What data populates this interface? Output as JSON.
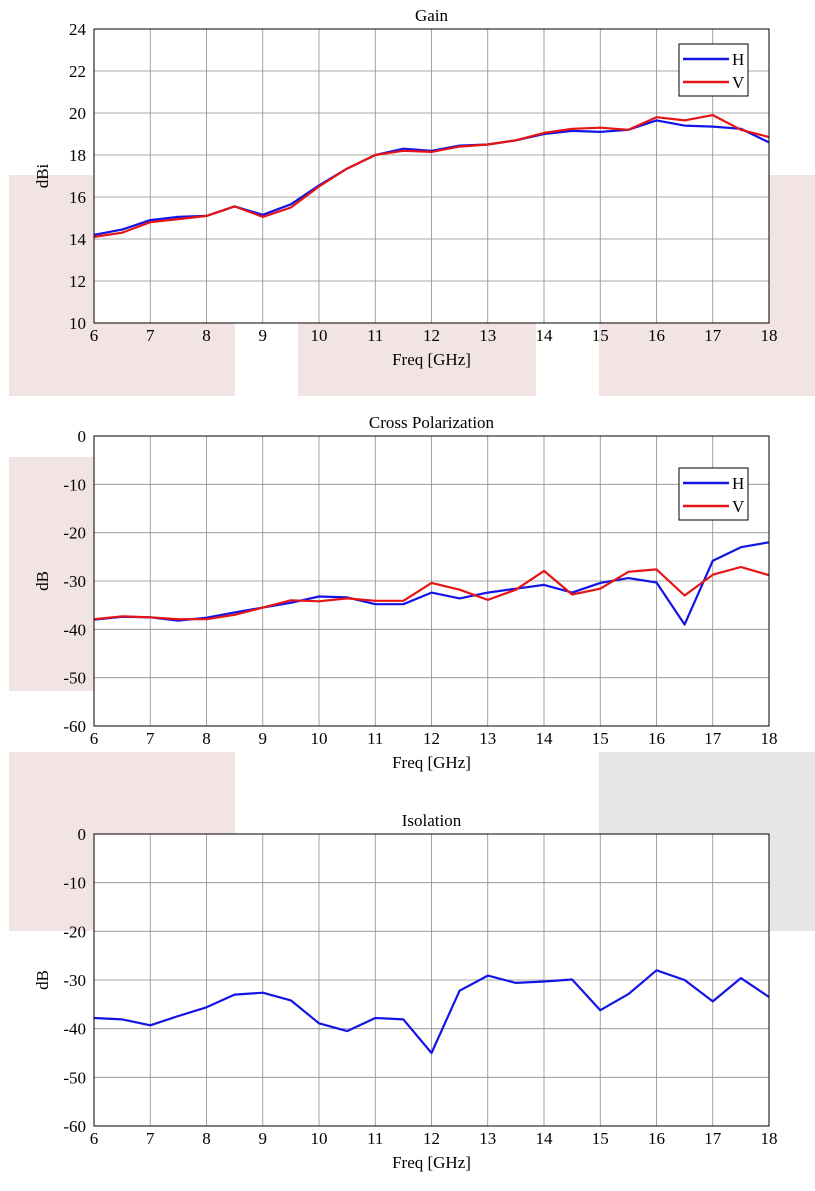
{
  "colors": {
    "H": "#1414e6",
    "V": "#e61414",
    "overlay_pink": "#f3e4e4",
    "overlay_gray": "#e6e6e6"
  },
  "chart_data": [
    {
      "type": "line",
      "title": "Gain",
      "xlabel": "Freq [GHz]",
      "ylabel": "dBi",
      "xlim": [
        6,
        18
      ],
      "ylim": [
        10,
        24
      ],
      "xticks": [
        6,
        7,
        8,
        9,
        10,
        11,
        12,
        13,
        14,
        15,
        16,
        17,
        18
      ],
      "yticks": [
        10,
        12,
        14,
        16,
        18,
        20,
        22,
        24
      ],
      "grid": true,
      "legend": "top-right",
      "x": [
        6,
        6.5,
        7,
        7.5,
        8,
        8.5,
        9,
        9.5,
        10,
        10.5,
        11,
        11.5,
        12,
        12.5,
        13,
        13.5,
        14,
        14.5,
        15,
        15.5,
        16,
        16.5,
        17,
        17.5,
        18
      ],
      "series": [
        {
          "name": "H",
          "color": "#1414e6",
          "values": [
            14.2,
            14.45,
            14.9,
            15.05,
            15.1,
            15.55,
            15.15,
            15.65,
            16.55,
            17.35,
            18.0,
            18.3,
            18.2,
            18.45,
            18.5,
            18.7,
            19.0,
            19.15,
            19.1,
            19.2,
            19.65,
            19.4,
            19.35,
            19.25,
            18.6
          ]
        },
        {
          "name": "V",
          "color": "#e61414",
          "values": [
            14.1,
            14.3,
            14.8,
            14.95,
            15.1,
            15.55,
            15.05,
            15.5,
            16.5,
            17.35,
            18.0,
            18.2,
            18.15,
            18.4,
            18.5,
            18.7,
            19.05,
            19.25,
            19.3,
            19.2,
            19.8,
            19.65,
            19.9,
            19.2,
            18.85
          ]
        }
      ]
    },
    {
      "type": "line",
      "title": "Cross Polarization",
      "xlabel": "Freq [GHz]",
      "ylabel": "dB",
      "xlim": [
        6,
        18
      ],
      "ylim": [
        -60,
        0
      ],
      "xticks": [
        6,
        7,
        8,
        9,
        10,
        11,
        12,
        13,
        14,
        15,
        16,
        17,
        18
      ],
      "yticks": [
        -60,
        -50,
        -40,
        -30,
        -20,
        -10,
        0
      ],
      "grid": true,
      "legend": "top-right",
      "x": [
        6,
        6.5,
        7,
        7.5,
        8,
        8.5,
        9,
        9.5,
        10,
        10.5,
        11,
        11.5,
        12,
        12.5,
        13,
        13.5,
        14,
        14.5,
        15,
        15.5,
        16,
        16.5,
        17,
        17.5,
        18
      ],
      "series": [
        {
          "name": "H",
          "color": "#1414e6",
          "values": [
            -38,
            -37.4,
            -37.5,
            -38.2,
            -37.6,
            -36.5,
            -35.5,
            -34.5,
            -33.2,
            -33.4,
            -34.8,
            -34.8,
            -32.4,
            -33.6,
            -32.4,
            -31.6,
            -30.8,
            -32.4,
            -30.4,
            -29.4,
            -30.3,
            -39,
            -25.8,
            -23,
            -22
          ]
        },
        {
          "name": "V",
          "color": "#e61414",
          "values": [
            -37.9,
            -37.3,
            -37.5,
            -37.9,
            -37.9,
            -37,
            -35.5,
            -34,
            -34.2,
            -33.6,
            -34.1,
            -34.1,
            -30.4,
            -31.8,
            -33.9,
            -31.8,
            -27.9,
            -32.8,
            -31.6,
            -28.1,
            -27.6,
            -33,
            -28.7,
            -27.1,
            -28.8
          ]
        }
      ]
    },
    {
      "type": "line",
      "title": "Isolation",
      "xlabel": "Freq [GHz]",
      "ylabel": "dB",
      "xlim": [
        6,
        18
      ],
      "ylim": [
        -60,
        0
      ],
      "xticks": [
        6,
        7,
        8,
        9,
        10,
        11,
        12,
        13,
        14,
        15,
        16,
        17,
        18
      ],
      "yticks": [
        -60,
        -50,
        -40,
        -30,
        -20,
        -10,
        0
      ],
      "grid": true,
      "x": [
        6,
        6.5,
        7,
        7.5,
        8,
        8.5,
        9,
        9.5,
        10,
        10.5,
        11,
        11.5,
        12,
        12.5,
        13,
        13.5,
        14,
        14.5,
        15,
        15.5,
        16,
        16.5,
        17,
        17.5,
        18
      ],
      "series": [
        {
          "name": "",
          "color": "#1414e6",
          "values": [
            -37.8,
            -38.1,
            -39.3,
            -37.4,
            -35.6,
            -33,
            -32.6,
            -34.2,
            -38.9,
            -40.5,
            -37.8,
            -38.1,
            -45,
            -32.2,
            -29.1,
            -30.6,
            -30.3,
            -29.9,
            -36.2,
            -32.9,
            -28,
            -30,
            -34.4,
            -29.6,
            -33.5
          ]
        }
      ]
    }
  ]
}
